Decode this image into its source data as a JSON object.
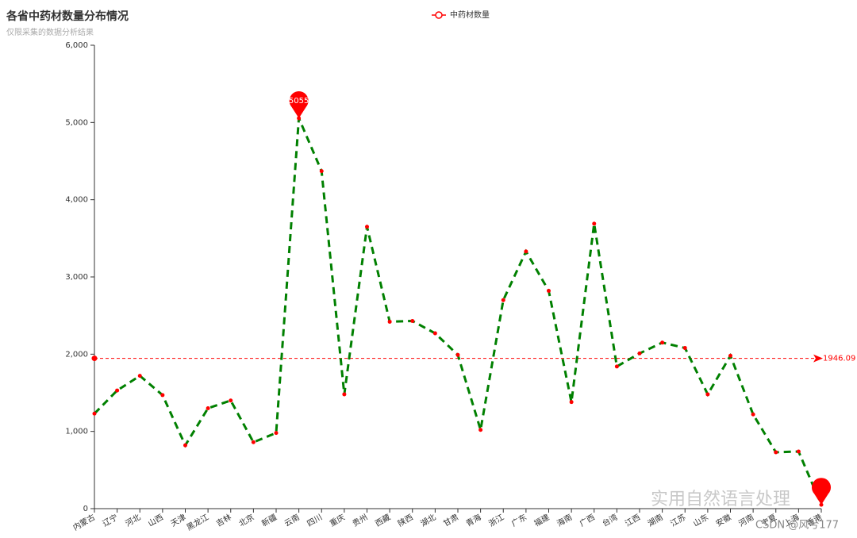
{
  "chart_data": {
    "type": "line",
    "title": "各省中药材数量分布情况",
    "subtitle": "仅限采集的数据分析结果",
    "categories": [
      "内蒙古",
      "辽宁",
      "河北",
      "山西",
      "天津",
      "黑龙江",
      "吉林",
      "北京",
      "新疆",
      "云南",
      "四川",
      "重庆",
      "贵州",
      "西藏",
      "陕西",
      "湖北",
      "甘肃",
      "青海",
      "浙江",
      "广东",
      "福建",
      "海南",
      "广西",
      "台湾",
      "江西",
      "湖南",
      "江苏",
      "山东",
      "安徽",
      "河南",
      "宁夏",
      "上海",
      "香港"
    ],
    "series": [
      {
        "name": "中药材数量",
        "color": "#ff0000",
        "line_color": "#008000",
        "values": [
          1230,
          1530,
          1720,
          1470,
          820,
          1300,
          1400,
          860,
          980,
          5055,
          4370,
          1480,
          3650,
          2420,
          2430,
          2270,
          1990,
          1020,
          2700,
          3330,
          2820,
          1380,
          3690,
          1840,
          2010,
          2150,
          2080,
          1480,
          1980,
          1220,
          730,
          740,
          50
        ]
      }
    ],
    "mark_line": {
      "value": 1946.09
    },
    "ylim": [
      0,
      6000
    ],
    "yticks": [
      0,
      {
        "value": 1000,
        "label": "1,000"
      },
      {
        "value": 2000,
        "label": "2,000"
      },
      {
        "value": 3000,
        "label": "3,000"
      },
      {
        "value": 4000,
        "label": "4,000"
      },
      {
        "value": 5000,
        "label": "5,000"
      },
      {
        "value": 6000,
        "label": "6,000"
      }
    ],
    "watermark": [
      "实用自然语言处理",
      "CSDN @风兮177"
    ]
  }
}
